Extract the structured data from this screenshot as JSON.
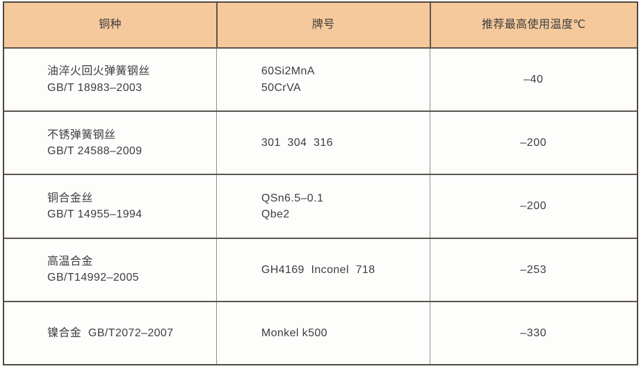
{
  "table": {
    "columns": [
      {
        "label": "铜种"
      },
      {
        "label": "牌号"
      },
      {
        "label": "推荐最高使用温度℃"
      }
    ],
    "rows": [
      {
        "material": [
          "油淬火回火弹簧钢丝",
          "GB/T 18983–2003"
        ],
        "grade": [
          "60Si2MnA",
          "50CrVA"
        ],
        "temp": "–40"
      },
      {
        "material": [
          "不锈弹簧钢丝",
          "GB/T 24588–2009"
        ],
        "grade": [
          "301  304  316"
        ],
        "temp": "–200"
      },
      {
        "material": [
          "铜合金丝",
          "GB/T 14955–1994"
        ],
        "grade": [
          "QSn6.5–0.1",
          "Qbe2"
        ],
        "temp": "–200"
      },
      {
        "material": [
          "高温合金",
          "GB/T14992–2005"
        ],
        "grade": [
          "GH4169  Inconel  718"
        ],
        "temp": "–253"
      },
      {
        "material": [
          "镍合金  GB/T2072–2007"
        ],
        "grade": [
          "Monkel k500"
        ],
        "temp": "–330"
      }
    ],
    "colors": {
      "header_bg": "#f5c99c",
      "outer_border": "#4e4742",
      "row_border": "#5b544c",
      "column_border": "#8c8c8c",
      "header_text": "#46392c",
      "body_text": "#3d3d3d"
    }
  }
}
